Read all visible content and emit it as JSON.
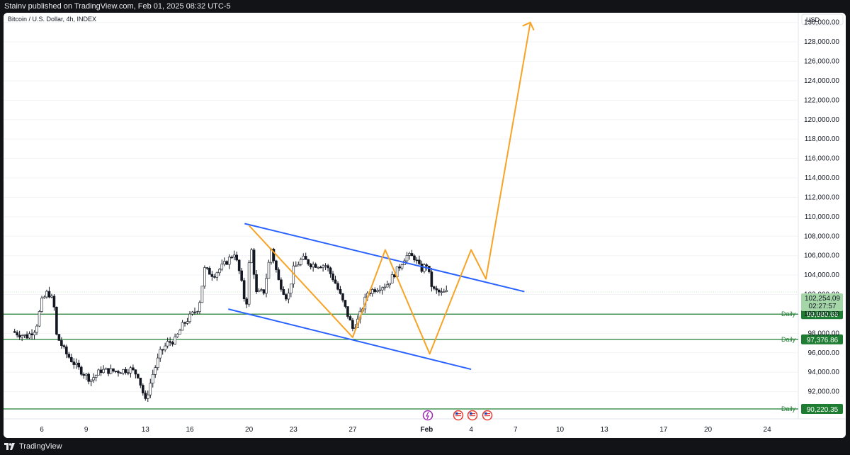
{
  "header": {
    "publish_line": "Stainv published on TradingView.com, Feb 01, 2025 08:32 UTC-5"
  },
  "footer": {
    "brand": "TradingView",
    "logo_icon": "tradingview-logo-icon"
  },
  "chart": {
    "symbol_title": "Bitcoin / U.S. Dollar, 4h, INDEX",
    "currency_button": "USD",
    "current_price": "102,254.09",
    "countdown": "02:27:57"
  },
  "chart_data": {
    "type": "candlestick",
    "title": "Bitcoin / U.S. Dollar, 4h, INDEX",
    "currency": "USD",
    "y_ticks": [
      "130,000.00",
      "128,000.00",
      "126,000.00",
      "124,000.00",
      "122,000.00",
      "120,000.00",
      "118,000.00",
      "116,000.00",
      "114,000.00",
      "112,000.00",
      "110,000.00",
      "108,000.00",
      "106,000.00",
      "104,000.00",
      "102,000.00",
      "100,000.00",
      "98,000.00",
      "96,000.00",
      "94,000.00",
      "92,000.00"
    ],
    "ylim": [
      89200,
      131000
    ],
    "x_ticks": [
      "6",
      "9",
      "13",
      "16",
      "20",
      "23",
      "27",
      "Feb",
      "4",
      "7",
      "10",
      "13",
      "17",
      "20",
      "24"
    ],
    "current_price": 102254.09,
    "horizontal_levels": [
      {
        "label": "Daily",
        "value": 99980.66,
        "text": "99,980.66"
      },
      {
        "label": "Daily",
        "value": 97376.86,
        "text": "97,376.86"
      },
      {
        "label": "Daily",
        "value": 90220.35,
        "text": "90,220.35"
      }
    ],
    "channel_lines": [
      {
        "name": "upper channel",
        "points": [
          [
            19.7,
            109300
          ],
          [
            38.6,
            102300
          ]
        ]
      },
      {
        "name": "lower channel",
        "points": [
          [
            18.6,
            100500
          ],
          [
            35.0,
            94300
          ]
        ]
      }
    ],
    "projection_path": [
      [
        20.0,
        109100
      ],
      [
        27.0,
        97600
      ],
      [
        29.2,
        106600
      ],
      [
        32.2,
        95900
      ],
      [
        35.0,
        106600
      ],
      [
        36.0,
        103600
      ],
      [
        39.0,
        130000
      ]
    ],
    "price_path_approx": [
      [
        4.0,
        98200
      ],
      [
        4.5,
        97900
      ],
      [
        5.0,
        97700
      ],
      [
        5.6,
        98500
      ],
      [
        6.0,
        101300
      ],
      [
        6.4,
        102300
      ],
      [
        6.8,
        101200
      ],
      [
        7.0,
        97800
      ],
      [
        7.6,
        96000
      ],
      [
        8.4,
        94500
      ],
      [
        9.3,
        93200
      ],
      [
        10.0,
        94200
      ],
      [
        11.0,
        94100
      ],
      [
        12.0,
        94300
      ],
      [
        12.5,
        93700
      ],
      [
        13.0,
        91000
      ],
      [
        13.5,
        93800
      ],
      [
        14.0,
        96000
      ],
      [
        14.5,
        97000
      ],
      [
        15.0,
        97300
      ],
      [
        15.5,
        98800
      ],
      [
        16.0,
        99700
      ],
      [
        16.6,
        100700
      ],
      [
        17.0,
        104600
      ],
      [
        17.6,
        104000
      ],
      [
        18.4,
        105200
      ],
      [
        19.0,
        106300
      ],
      [
        19.4,
        104000
      ],
      [
        19.8,
        100500
      ],
      [
        20.1,
        107400
      ],
      [
        20.5,
        102100
      ],
      [
        21.0,
        102300
      ],
      [
        21.5,
        106700
      ],
      [
        22.0,
        103400
      ],
      [
        22.6,
        101500
      ],
      [
        23.0,
        104600
      ],
      [
        23.6,
        105700
      ],
      [
        24.2,
        105100
      ],
      [
        25.2,
        105000
      ],
      [
        25.8,
        103300
      ],
      [
        26.4,
        101000
      ],
      [
        27.0,
        98500
      ],
      [
        27.4,
        99500
      ],
      [
        28.0,
        102200
      ],
      [
        28.8,
        102800
      ],
      [
        29.3,
        103000
      ],
      [
        30.0,
        104500
      ],
      [
        30.6,
        106000
      ],
      [
        31.2,
        105800
      ],
      [
        31.6,
        104500
      ],
      [
        32.0,
        105100
      ],
      [
        32.4,
        102500
      ],
      [
        33.0,
        102100
      ],
      [
        33.4,
        102254
      ]
    ],
    "event_markers": [
      "flash-event",
      "us-flag-event",
      "us-flag-event",
      "us-flag-event"
    ],
    "colors": {
      "channel": "#2962ff",
      "projection": "#f7a325",
      "levels": "#1e7d32",
      "bull": "#ffffff",
      "bear": "#131722"
    }
  }
}
